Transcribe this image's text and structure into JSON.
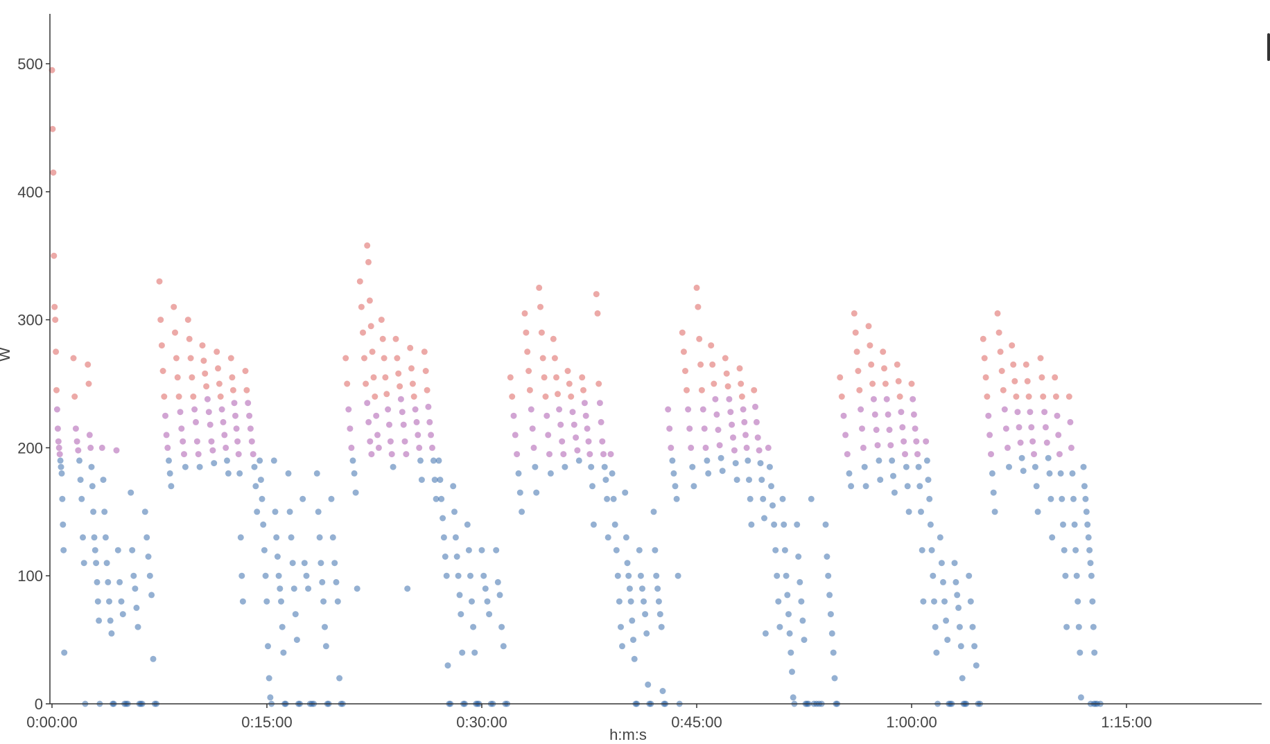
{
  "chart_data": {
    "type": "scatter",
    "title": "",
    "xlabel": "h:m:s",
    "ylabel": "W",
    "ylim": [
      0,
      540
    ],
    "xlim": [
      "0:00:00",
      "1:24:30"
    ],
    "y_ticks": [
      "0",
      "100",
      "200",
      "300",
      "400",
      "500"
    ],
    "x_ticks": [
      "0:00:00",
      "0:15:00",
      "0:30:00",
      "0:45:00",
      "1:00:00",
      "1:15:00"
    ],
    "grid": false,
    "legend": "none",
    "color_bands": [
      {
        "below": 195,
        "color": "#2a62a5"
      },
      {
        "below": 240,
        "color": "#a44aa8"
      },
      {
        "below": 9999,
        "color": "#d9544f"
      }
    ],
    "series": [
      {
        "x_min": 0.0,
        "y": [
          495,
          449,
          415,
          350,
          310,
          300,
          275,
          245,
          230,
          215,
          205,
          200,
          195,
          190,
          185,
          180,
          160,
          140,
          120,
          40
        ]
      },
      {
        "x_min": 1.5,
        "y": [
          270,
          240,
          215,
          205,
          198,
          190,
          175,
          160,
          130,
          110,
          0
        ]
      },
      {
        "x_min": 2.5,
        "y": [
          265,
          250,
          210,
          200,
          185,
          170,
          150,
          130,
          120,
          110,
          95,
          80,
          65,
          0
        ]
      },
      {
        "x_min": 3.5,
        "y": [
          200,
          175,
          150,
          130,
          110,
          95,
          80,
          65,
          55,
          0,
          0
        ]
      },
      {
        "x_min": 4.5,
        "y": [
          198,
          120,
          95,
          80,
          70,
          0,
          0,
          0
        ]
      },
      {
        "x_min": 5.5,
        "y": [
          165,
          120,
          100,
          90,
          75,
          60,
          0,
          0,
          0
        ]
      },
      {
        "x_min": 6.5,
        "y": [
          150,
          130,
          115,
          100,
          85,
          35,
          0,
          0
        ]
      },
      {
        "x_min": 7.5,
        "y": [
          330,
          300,
          280,
          260,
          240,
          225,
          210,
          200,
          190,
          180,
          170
        ]
      },
      {
        "x_min": 8.5,
        "y": [
          310,
          290,
          270,
          255,
          240,
          228,
          215,
          205,
          195,
          185
        ]
      },
      {
        "x_min": 9.5,
        "y": [
          300,
          285,
          270,
          255,
          240,
          230,
          220,
          205,
          195,
          185
        ]
      },
      {
        "x_min": 10.5,
        "y": [
          280,
          268,
          258,
          248,
          238,
          228,
          218,
          205,
          198,
          188
        ]
      },
      {
        "x_min": 11.5,
        "y": [
          275,
          262,
          250,
          240,
          230,
          220,
          210,
          200,
          190,
          180
        ]
      },
      {
        "x_min": 12.5,
        "y": [
          270,
          255,
          245,
          235,
          225,
          215,
          205,
          195,
          180,
          130,
          100,
          80
        ]
      },
      {
        "x_min": 13.5,
        "y": [
          260,
          245,
          235,
          225,
          215,
          205,
          195,
          185,
          170,
          150
        ]
      },
      {
        "x_min": 14.5,
        "y": [
          190,
          175,
          160,
          140,
          120,
          100,
          80,
          45,
          20,
          5,
          0
        ]
      },
      {
        "x_min": 15.5,
        "y": [
          190,
          150,
          130,
          115,
          100,
          90,
          80,
          60,
          40,
          0,
          0
        ]
      },
      {
        "x_min": 16.5,
        "y": [
          180,
          150,
          130,
          110,
          90,
          70,
          50,
          0,
          0
        ]
      },
      {
        "x_min": 17.5,
        "y": [
          160,
          110,
          100,
          90,
          0,
          0,
          0
        ]
      },
      {
        "x_min": 18.5,
        "y": [
          180,
          150,
          130,
          110,
          95,
          80,
          60,
          45,
          0,
          0
        ]
      },
      {
        "x_min": 19.5,
        "y": [
          160,
          130,
          110,
          95,
          80,
          20,
          0,
          0
        ]
      },
      {
        "x_min": 20.5,
        "y": [
          270,
          250,
          230,
          215,
          200,
          190,
          180,
          165,
          90
        ]
      },
      {
        "x_min": 21.5,
        "y": [
          330,
          310,
          290,
          270,
          250,
          235,
          220,
          205,
          195
        ]
      },
      {
        "x_min": 22.0,
        "y": [
          358,
          345,
          315,
          295,
          275,
          255,
          240,
          225,
          210,
          200
        ]
      },
      {
        "x_min": 23.0,
        "y": [
          300,
          285,
          270,
          255,
          242,
          230,
          218,
          205,
          195,
          185
        ]
      },
      {
        "x_min": 24.0,
        "y": [
          285,
          270,
          258,
          248,
          238,
          228,
          218,
          205,
          195,
          90
        ]
      },
      {
        "x_min": 25.0,
        "y": [
          278,
          262,
          250,
          240,
          230,
          220,
          210,
          200,
          190,
          175
        ]
      },
      {
        "x_min": 26.0,
        "y": [
          275,
          260,
          245,
          232,
          220,
          210,
          200,
          190,
          175,
          160
        ]
      },
      {
        "x_min": 27.0,
        "y": [
          190,
          175,
          160,
          145,
          130,
          115,
          100,
          30,
          0,
          0
        ]
      },
      {
        "x_min": 28.0,
        "y": [
          170,
          150,
          130,
          115,
          100,
          85,
          70,
          40,
          0,
          0
        ]
      },
      {
        "x_min": 29.0,
        "y": [
          140,
          120,
          100,
          80,
          60,
          40,
          0,
          0,
          0
        ]
      },
      {
        "x_min": 30.0,
        "y": [
          120,
          100,
          90,
          80,
          70,
          0,
          0
        ]
      },
      {
        "x_min": 31.0,
        "y": [
          120,
          95,
          85,
          60,
          45,
          0,
          0
        ]
      },
      {
        "x_min": 32.0,
        "y": [
          255,
          240,
          225,
          210,
          195,
          180,
          165,
          150
        ]
      },
      {
        "x_min": 33.0,
        "y": [
          305,
          290,
          275,
          260,
          245,
          230,
          215,
          200,
          185,
          165
        ]
      },
      {
        "x_min": 34.0,
        "y": [
          325,
          310,
          290,
          270,
          255,
          240,
          225,
          210,
          195,
          180
        ]
      },
      {
        "x_min": 35.0,
        "y": [
          285,
          270,
          255,
          242,
          230,
          218,
          205,
          195,
          185
        ]
      },
      {
        "x_min": 36.0,
        "y": [
          260,
          250,
          240,
          228,
          218,
          208,
          198,
          190
        ]
      },
      {
        "x_min": 37.0,
        "y": [
          255,
          245,
          235,
          225,
          215,
          205,
          195,
          185,
          170,
          140
        ]
      },
      {
        "x_min": 38.0,
        "y": [
          320,
          305,
          250,
          235,
          220,
          205,
          195,
          185,
          175,
          160,
          130
        ]
      },
      {
        "x_min": 39.0,
        "y": [
          195,
          180,
          160,
          140,
          120,
          100,
          80,
          60,
          45
        ]
      },
      {
        "x_min": 40.0,
        "y": [
          165,
          130,
          110,
          100,
          90,
          80,
          65,
          50,
          35,
          0,
          0
        ]
      },
      {
        "x_min": 41.0,
        "y": [
          120,
          100,
          90,
          80,
          70,
          55,
          15,
          0,
          0
        ]
      },
      {
        "x_min": 42.0,
        "y": [
          150,
          120,
          100,
          90,
          80,
          70,
          60,
          10,
          0,
          0
        ]
      },
      {
        "x_min": 43.0,
        "y": [
          230,
          215,
          200,
          190,
          180,
          170,
          160,
          100,
          0
        ]
      },
      {
        "x_min": 44.0,
        "y": [
          290,
          275,
          260,
          245,
          230,
          215,
          200,
          185,
          170
        ]
      },
      {
        "x_min": 45.0,
        "y": [
          325,
          310,
          285,
          265,
          245,
          230,
          215,
          200,
          190,
          180
        ]
      },
      {
        "x_min": 46.0,
        "y": [
          280,
          265,
          250,
          238,
          226,
          214,
          202,
          192,
          182
        ]
      },
      {
        "x_min": 47.0,
        "y": [
          270,
          258,
          248,
          238,
          228,
          218,
          208,
          198,
          188,
          175
        ]
      },
      {
        "x_min": 48.0,
        "y": [
          262,
          250,
          240,
          230,
          220,
          210,
          200,
          190,
          175,
          160,
          140
        ]
      },
      {
        "x_min": 49.0,
        "y": [
          245,
          232,
          220,
          208,
          198,
          188,
          175,
          160,
          145,
          55
        ]
      },
      {
        "x_min": 50.0,
        "y": [
          200,
          185,
          170,
          155,
          140,
          120,
          100,
          80,
          60
        ]
      },
      {
        "x_min": 51.0,
        "y": [
          160,
          140,
          120,
          100,
          85,
          70,
          55,
          40,
          25,
          5,
          0
        ]
      },
      {
        "x_min": 52.0,
        "y": [
          140,
          115,
          95,
          80,
          65,
          50,
          0,
          0,
          0
        ]
      },
      {
        "x_min": 53.0,
        "y": [
          160,
          0,
          0,
          0,
          0
        ]
      },
      {
        "x_min": 54.0,
        "y": [
          140,
          115,
          100,
          85,
          70,
          55,
          40,
          20,
          0,
          0
        ]
      },
      {
        "x_min": 55.0,
        "y": [
          255,
          240,
          225,
          210,
          195,
          180,
          170
        ]
      },
      {
        "x_min": 56.0,
        "y": [
          305,
          290,
          275,
          260,
          245,
          230,
          215,
          200,
          185,
          170
        ]
      },
      {
        "x_min": 57.0,
        "y": [
          295,
          280,
          265,
          250,
          238,
          226,
          214,
          202,
          190,
          175
        ]
      },
      {
        "x_min": 58.0,
        "y": [
          275,
          262,
          250,
          238,
          226,
          214,
          202,
          190,
          178,
          165
        ]
      },
      {
        "x_min": 59.0,
        "y": [
          265,
          252,
          240,
          228,
          216,
          205,
          195,
          185,
          170,
          150
        ]
      },
      {
        "x_min": 60.0,
        "y": [
          250,
          238,
          226,
          215,
          205,
          195,
          185,
          170,
          150,
          120,
          80
        ]
      },
      {
        "x_min": 61.0,
        "y": [
          205,
          190,
          175,
          160,
          140,
          120,
          100,
          80,
          60,
          40,
          0
        ]
      },
      {
        "x_min": 62.0,
        "y": [
          130,
          110,
          95,
          80,
          65,
          50,
          0,
          0,
          0
        ]
      },
      {
        "x_min": 63.0,
        "y": [
          110,
          95,
          85,
          75,
          60,
          45,
          20,
          0,
          0,
          0
        ]
      },
      {
        "x_min": 64.0,
        "y": [
          100,
          80,
          60,
          45,
          30,
          0,
          0
        ]
      },
      {
        "x_min": 65.0,
        "y": [
          285,
          270,
          255,
          240,
          225,
          210,
          195,
          180,
          165,
          150
        ]
      },
      {
        "x_min": 66.0,
        "y": [
          305,
          290,
          275,
          260,
          245,
          230,
          215,
          200,
          185
        ]
      },
      {
        "x_min": 67.0,
        "y": [
          280,
          265,
          252,
          240,
          228,
          216,
          204,
          192,
          182
        ]
      },
      {
        "x_min": 68.0,
        "y": [
          265,
          252,
          240,
          228,
          216,
          205,
          195,
          185,
          170,
          150
        ]
      },
      {
        "x_min": 69.0,
        "y": [
          270,
          255,
          240,
          228,
          216,
          204,
          192,
          180,
          160,
          130
        ]
      },
      {
        "x_min": 70.0,
        "y": [
          255,
          240,
          225,
          210,
          195,
          180,
          160,
          140,
          120,
          100,
          60
        ]
      },
      {
        "x_min": 71.0,
        "y": [
          240,
          220,
          200,
          180,
          160,
          140,
          120,
          100,
          80,
          60,
          40,
          5
        ]
      },
      {
        "x_min": 72.0,
        "y": [
          185,
          170,
          160,
          150,
          140,
          130,
          120,
          110,
          100,
          80,
          60,
          40,
          0
        ]
      },
      {
        "x_min": 72.5,
        "y": [
          0,
          0,
          0,
          0
        ]
      }
    ]
  }
}
